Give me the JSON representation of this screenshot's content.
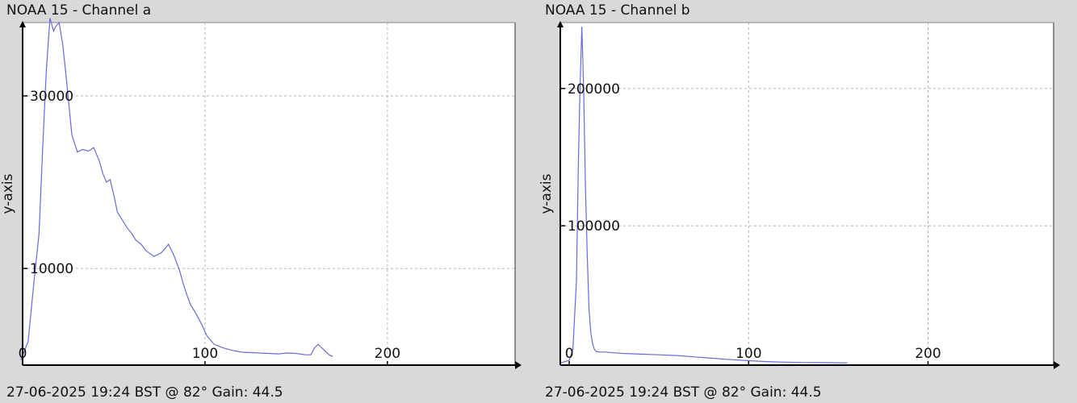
{
  "chart_data": [
    {
      "type": "line",
      "title": "NOAA 15 - Channel a",
      "footer": "27-06-2025 19:24 BST @ 82° Gain: 44.5",
      "xlabel": "",
      "ylabel": "y-axis",
      "xlim": [
        0,
        270
      ],
      "ylim": [
        -1200,
        38500
      ],
      "x_ticks": [
        0,
        100,
        200
      ],
      "y_ticks": [
        10000,
        30000
      ],
      "grid": true,
      "color": "#6a6ad8",
      "series": [
        {
          "x": [
            -1,
            3,
            6,
            9,
            11,
            13,
            15,
            17,
            18,
            20,
            22,
            24,
            27,
            30,
            33,
            36,
            39,
            42,
            44,
            46,
            48,
            50,
            52,
            55,
            57,
            60,
            62,
            65,
            68,
            72,
            76,
            80,
            83,
            86,
            88,
            90,
            92,
            95,
            98,
            101,
            105,
            110,
            115,
            120,
            125,
            130,
            135,
            140,
            145,
            150,
            155,
            158,
            160,
            162,
            165,
            168,
            170
          ],
          "y": [
            -600,
            1500,
            8000,
            14000,
            24000,
            33000,
            39000,
            37500,
            38000,
            38500,
            36000,
            32000,
            25500,
            23500,
            23800,
            23600,
            24000,
            22500,
            21000,
            20000,
            20300,
            18500,
            16500,
            15500,
            14800,
            14000,
            13300,
            12800,
            12000,
            11400,
            11800,
            12800,
            11500,
            9800,
            8300,
            7000,
            5800,
            4800,
            3600,
            2200,
            1200,
            800,
            500,
            300,
            250,
            200,
            150,
            100,
            200,
            150,
            0,
            0,
            800,
            1200,
            600,
            0,
            -200
          ]
        }
      ]
    },
    {
      "type": "line",
      "title": "NOAA 15 - Channel b",
      "footer": "27-06-2025 19:24 BST @ 82° Gain: 44.5",
      "xlabel": "",
      "ylabel": "y-axis",
      "xlim": [
        -5,
        270
      ],
      "ylim": [
        -1500,
        248000
      ],
      "x_ticks": [
        0,
        100,
        200
      ],
      "y_ticks": [
        100000,
        200000
      ],
      "grid": true,
      "color": "#6a6ad8",
      "series": [
        {
          "x": [
            -5,
            0,
            2,
            4,
            5,
            6,
            7,
            8,
            9,
            10,
            11,
            12,
            13,
            14,
            15,
            17,
            20,
            25,
            30,
            40,
            50,
            60,
            70,
            80,
            90,
            100,
            110,
            120,
            130,
            140,
            150,
            155
          ],
          "y": [
            0,
            2000,
            10000,
            60000,
            140000,
            200000,
            245000,
            200000,
            130000,
            80000,
            40000,
            22000,
            14000,
            10000,
            8500,
            8000,
            8000,
            7500,
            7000,
            6500,
            6000,
            5500,
            4500,
            3500,
            2500,
            1700,
            1100,
            700,
            400,
            300,
            200,
            100
          ]
        }
      ]
    }
  ]
}
